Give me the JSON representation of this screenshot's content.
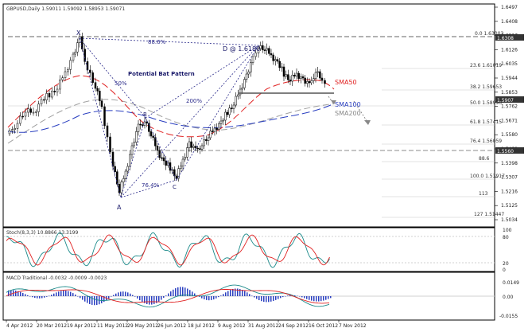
{
  "header": {
    "symbol_line": "GBPUSD,Daily  1.59011 1.59092 1.58953 1.59071"
  },
  "price_axis": {
    "ticks": [
      "1.6497",
      "1.6408",
      "1.6217",
      "1.6126",
      "1.6035",
      "1.5944",
      "1.5853",
      "1.5762",
      "1.5671",
      "1.5580",
      "1.5489",
      "1.5398",
      "1.5307",
      "1.5216",
      "1.5125",
      "1.5034"
    ],
    "current_price": "1.5907",
    "boxed_level_1": "1.6308",
    "boxed_level_2": "1.5560"
  },
  "fib_levels": [
    "0.0  1.63003",
    "23.6  1.61019",
    "38.2  1.59653",
    "50.0  1.58990",
    "61.8  1.57415",
    "76.4  1.56059",
    "88.6",
    "100.0  1.53917",
    "113",
    "127  1.51447"
  ],
  "pattern_labels": {
    "x": "X",
    "a": "A",
    "b": "B",
    "c": "C",
    "d": "D @ 1.6180",
    "pattern_name": "Potential Bat Pattern",
    "ratio_886": "88.6%",
    "ratio_50": "50%",
    "ratio_200": "200%",
    "ratio_764": "76.4%"
  },
  "sma_labels": {
    "sma50": "SMA50",
    "sma100": "SMA100",
    "sma200": "SMA200"
  },
  "stoch": {
    "title": "Stoch(8,3,3)  10.8866  13.3199",
    "ticks": [
      "100",
      "80",
      "20",
      "0"
    ]
  },
  "macd": {
    "title": "MACD Traditional  -0.0032  -0.0009  -0.0023",
    "ticks": [
      "0.0149",
      "0.00",
      "-0.0155"
    ]
  },
  "date_axis": [
    "4 Apr 2012",
    "20 Mar 2012",
    "19 Apr 2012",
    "11 May 2012",
    "29 May 2012",
    "26 Jun 2012",
    "18 Jul 2012",
    "9 Aug 2012",
    "31 Aug 2012",
    "24 Sep 2012",
    "16 Oct 2012",
    "7 Nov 2012"
  ],
  "colors": {
    "sma50": "#e02020",
    "sma100": "#2a3fc0",
    "sma200": "#a0a0a0",
    "pattern": "#2a2a8a",
    "candle": "#000000"
  }
}
